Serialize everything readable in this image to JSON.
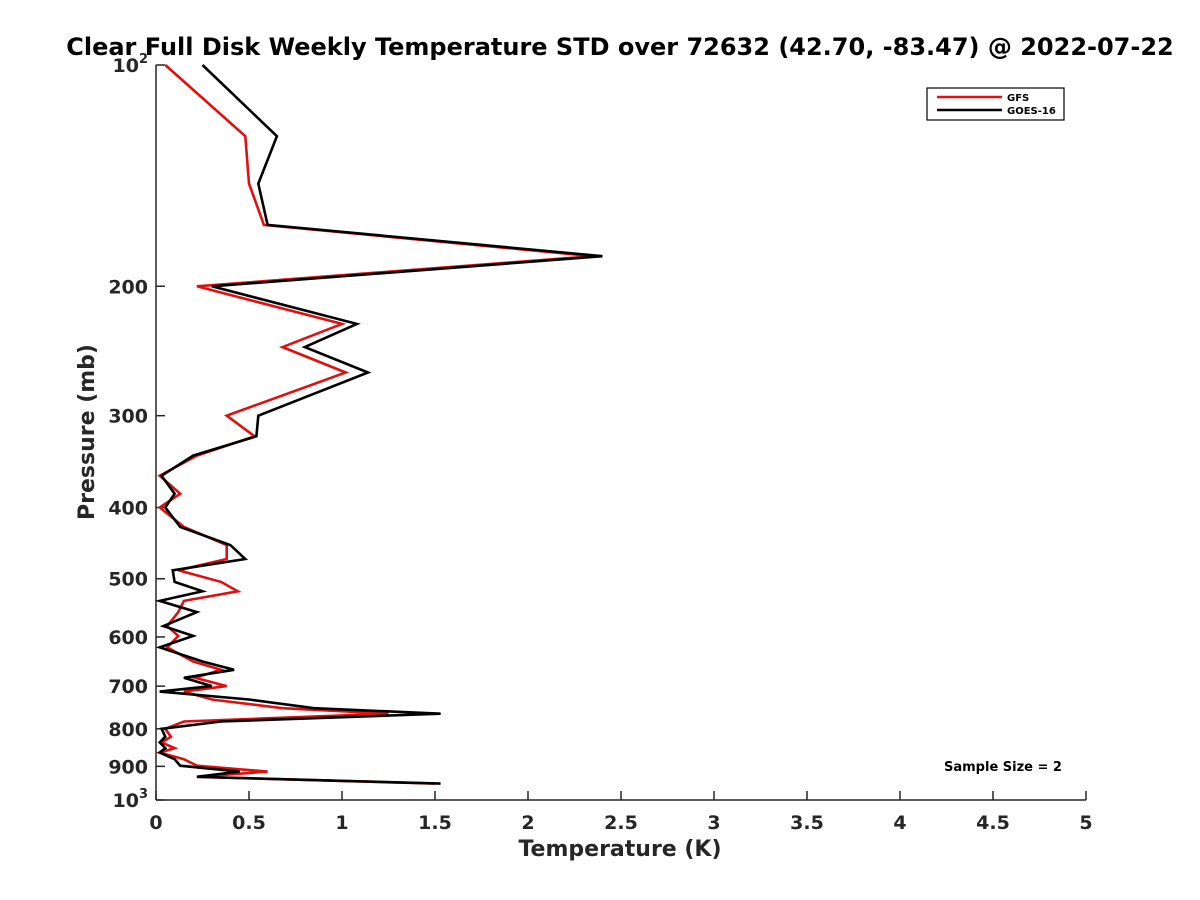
{
  "chart_data": {
    "type": "line",
    "title": "Clear Full Disk Weekly Temperature STD over 72632 (42.70, -83.47) @ 2022-07-22",
    "xlabel": "Temperature (K)",
    "ylabel": "Pressure (mb)",
    "xlim": [
      0,
      5
    ],
    "ylim": [
      100,
      1000
    ],
    "y_scale": "log",
    "y_reversed": true,
    "grid": false,
    "legend_position": "top-right",
    "x_ticks": [
      "0",
      "0.5",
      "1",
      "1.5",
      "2",
      "2.5",
      "3",
      "3.5",
      "4",
      "4.5",
      "5"
    ],
    "y_ticks": [
      {
        "value": 100,
        "label": "10",
        "sup": "2"
      },
      {
        "value": 200,
        "label": "200",
        "sup": ""
      },
      {
        "value": 300,
        "label": "300",
        "sup": ""
      },
      {
        "value": 400,
        "label": "400",
        "sup": ""
      },
      {
        "value": 500,
        "label": "500",
        "sup": ""
      },
      {
        "value": 600,
        "label": "600",
        "sup": ""
      },
      {
        "value": 700,
        "label": "700",
        "sup": ""
      },
      {
        "value": 800,
        "label": "800",
        "sup": ""
      },
      {
        "value": 900,
        "label": "900",
        "sup": ""
      },
      {
        "value": 1000,
        "label": "10",
        "sup": "3"
      }
    ],
    "annotation": "Sample Size = 2",
    "series": [
      {
        "name": "GFS",
        "color": "#e01010",
        "points": [
          [
            0.05,
            100
          ],
          [
            0.48,
            125
          ],
          [
            0.5,
            145
          ],
          [
            0.58,
            165
          ],
          [
            2.35,
            182
          ],
          [
            0.22,
            200
          ],
          [
            1.0,
            225
          ],
          [
            0.68,
            242
          ],
          [
            1.02,
            262
          ],
          [
            0.38,
            300
          ],
          [
            0.53,
            320
          ],
          [
            0.22,
            340
          ],
          [
            0.02,
            362
          ],
          [
            0.13,
            383
          ],
          [
            0.02,
            400
          ],
          [
            0.15,
            425
          ],
          [
            0.38,
            450
          ],
          [
            0.38,
            470
          ],
          [
            0.12,
            487
          ],
          [
            0.35,
            505
          ],
          [
            0.44,
            520
          ],
          [
            0.15,
            536
          ],
          [
            0.12,
            555
          ],
          [
            0.06,
            580
          ],
          [
            0.12,
            598
          ],
          [
            0.06,
            620
          ],
          [
            0.2,
            648
          ],
          [
            0.35,
            665
          ],
          [
            0.21,
            682
          ],
          [
            0.38,
            700
          ],
          [
            0.15,
            712
          ],
          [
            0.3,
            730
          ],
          [
            0.68,
            750
          ],
          [
            1.25,
            763
          ],
          [
            0.15,
            782
          ],
          [
            0.05,
            800
          ],
          [
            0.08,
            820
          ],
          [
            0.03,
            835
          ],
          [
            0.1,
            850
          ],
          [
            0.02,
            862
          ],
          [
            0.15,
            880
          ],
          [
            0.22,
            898
          ],
          [
            0.6,
            915
          ],
          [
            0.22,
            930
          ],
          [
            1.5,
            950
          ]
        ]
      },
      {
        "name": "GOES-16",
        "color": "#000000",
        "points": [
          [
            0.25,
            100
          ],
          [
            0.65,
            125
          ],
          [
            0.55,
            145
          ],
          [
            0.6,
            165
          ],
          [
            2.4,
            182
          ],
          [
            0.3,
            200
          ],
          [
            1.08,
            225
          ],
          [
            0.8,
            242
          ],
          [
            1.14,
            262
          ],
          [
            0.55,
            300
          ],
          [
            0.54,
            320
          ],
          [
            0.2,
            340
          ],
          [
            0.03,
            362
          ],
          [
            0.1,
            383
          ],
          [
            0.05,
            400
          ],
          [
            0.13,
            425
          ],
          [
            0.4,
            450
          ],
          [
            0.48,
            470
          ],
          [
            0.09,
            487
          ],
          [
            0.1,
            505
          ],
          [
            0.25,
            520
          ],
          [
            0.02,
            536
          ],
          [
            0.22,
            555
          ],
          [
            0.04,
            580
          ],
          [
            0.2,
            598
          ],
          [
            0.02,
            620
          ],
          [
            0.25,
            648
          ],
          [
            0.42,
            665
          ],
          [
            0.15,
            682
          ],
          [
            0.3,
            700
          ],
          [
            0.02,
            712
          ],
          [
            0.5,
            730
          ],
          [
            0.85,
            750
          ],
          [
            1.53,
            763
          ],
          [
            0.35,
            782
          ],
          [
            0.03,
            800
          ],
          [
            0.05,
            820
          ],
          [
            0.02,
            835
          ],
          [
            0.05,
            850
          ],
          [
            0.02,
            862
          ],
          [
            0.1,
            880
          ],
          [
            0.13,
            898
          ],
          [
            0.45,
            915
          ],
          [
            0.22,
            930
          ],
          [
            1.53,
            950
          ]
        ]
      }
    ]
  }
}
